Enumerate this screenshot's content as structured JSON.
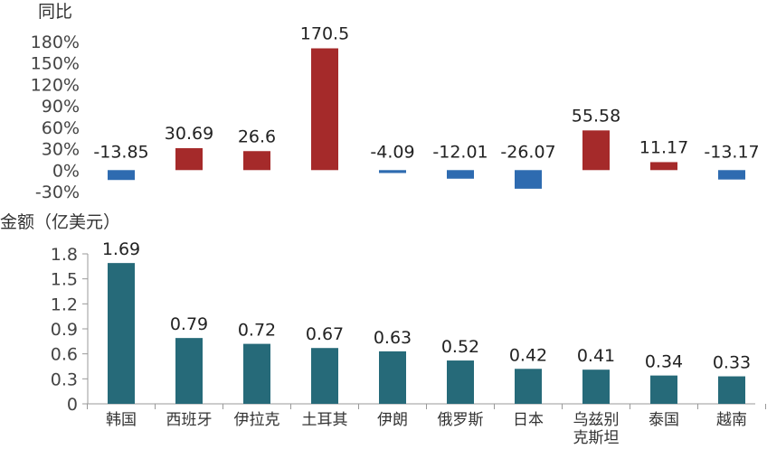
{
  "chart_data": [
    {
      "type": "bar",
      "title": "同比",
      "unit_suffix": "%",
      "categories": [
        "韩国",
        "西班牙",
        "伊拉克",
        "土耳其",
        "伊朗",
        "俄罗斯",
        "日本",
        "乌兹别克斯坦",
        "泰国",
        "越南"
      ],
      "values": [
        -13.85,
        30.69,
        26.6,
        170.5,
        -4.09,
        -12.01,
        -26.07,
        55.58,
        11.17,
        -13.17
      ],
      "data_labels": [
        "-13.85",
        "30.69",
        "26.6",
        "170.5",
        "-4.09",
        "-12.01",
        "-26.07",
        "55.58",
        "11.17",
        "-13.17"
      ],
      "ylim": [
        -30,
        180
      ],
      "yticks": [
        -30,
        0,
        30,
        60,
        90,
        120,
        150,
        180
      ],
      "ytick_labels": [
        "-30%",
        "0%",
        "30%",
        "60%",
        "90%",
        "120%",
        "150%",
        "180%"
      ],
      "colors": {
        "positive": "#a52a2a",
        "negative": "#2e6bb0"
      }
    },
    {
      "type": "bar",
      "title": "金额（亿美元）",
      "categories": [
        "韩国",
        "西班牙",
        "伊拉克",
        "土耳其",
        "伊朗",
        "俄罗斯",
        "日本",
        "乌兹别克斯坦",
        "泰国",
        "越南"
      ],
      "category_labels": [
        [
          "韩国"
        ],
        [
          "西班牙"
        ],
        [
          "伊拉克"
        ],
        [
          "土耳其"
        ],
        [
          "伊朗"
        ],
        [
          "俄罗斯"
        ],
        [
          "日本"
        ],
        [
          "乌兹别",
          "克斯坦"
        ],
        [
          "泰国"
        ],
        [
          "越南"
        ]
      ],
      "values": [
        1.69,
        0.79,
        0.72,
        0.67,
        0.63,
        0.52,
        0.42,
        0.41,
        0.34,
        0.33
      ],
      "data_labels": [
        "1.69",
        "0.79",
        "0.72",
        "0.67",
        "0.63",
        "0.52",
        "0.42",
        "0.41",
        "0.34",
        "0.33"
      ],
      "ylim": [
        0,
        1.8
      ],
      "yticks": [
        0,
        0.3,
        0.6,
        0.9,
        1.2,
        1.5,
        1.8
      ],
      "ytick_labels": [
        "0",
        "0.3",
        "0.6",
        "0.9",
        "1.2",
        "1.5",
        "1.8"
      ],
      "colors": {
        "bar": "#266a79",
        "axis": "#999999"
      }
    }
  ]
}
